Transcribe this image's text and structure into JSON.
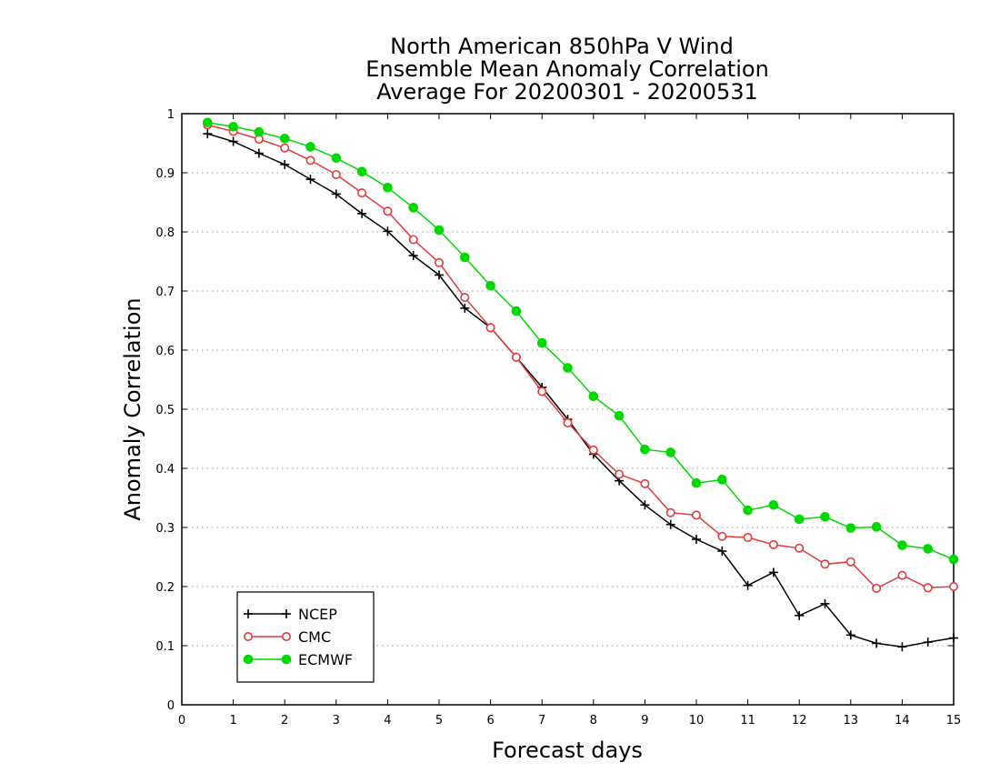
{
  "chart_data": {
    "type": "line",
    "title_lines": [
      "North American 850hPa V Wind",
      "Ensemble Mean Anomaly Correlation",
      "Average For 20200301 - 20200531"
    ],
    "xlabel": "Forecast days",
    "ylabel": "Anomaly Correlation",
    "xlim": [
      0,
      15
    ],
    "ylim": [
      0,
      1
    ],
    "xticks": [
      "0",
      "1",
      "2",
      "3",
      "4",
      "5",
      "6",
      "7",
      "8",
      "9",
      "10",
      "11",
      "12",
      "13",
      "14",
      "15"
    ],
    "yticks": [
      "0",
      "0.1",
      "0.2",
      "0.3",
      "0.4",
      "0.5",
      "0.6",
      "0.7",
      "0.8",
      "0.9",
      "1"
    ],
    "grid": "horizontal dotted",
    "legend_position": "bottom-left",
    "x": [
      0.5,
      1,
      1.5,
      2,
      2.5,
      3,
      3.5,
      4,
      4.5,
      5,
      5.5,
      6,
      6.5,
      7,
      7.5,
      8,
      8.5,
      9,
      9.5,
      10,
      10.5,
      11,
      11.5,
      12,
      12.5,
      13,
      13.5,
      14,
      14.5,
      15
    ],
    "series": [
      {
        "name": "NCEP",
        "color": "#000000",
        "marker": "plus",
        "values": [
          0.966,
          0.953,
          0.933,
          0.914,
          0.889,
          0.864,
          0.831,
          0.801,
          0.76,
          0.727,
          0.671,
          0.638,
          0.588,
          0.537,
          0.483,
          0.424,
          0.379,
          0.338,
          0.305,
          0.28,
          0.26,
          0.202,
          0.224,
          0.151,
          0.171,
          0.118,
          0.104,
          0.098,
          0.106,
          0.113
        ]
      },
      {
        "name": "CMC",
        "color": "#e03c3c",
        "marker": "open-circle",
        "values": [
          0.981,
          0.97,
          0.957,
          0.942,
          0.921,
          0.897,
          0.866,
          0.835,
          0.787,
          0.748,
          0.689,
          0.638,
          0.588,
          0.53,
          0.477,
          0.431,
          0.39,
          0.374,
          0.325,
          0.321,
          0.285,
          0.283,
          0.271,
          0.265,
          0.238,
          0.242,
          0.197,
          0.219,
          0.198,
          0.2
        ]
      },
      {
        "name": "ECMWF",
        "color": "#00d800",
        "marker": "filled-circle",
        "values": [
          0.985,
          0.978,
          0.969,
          0.958,
          0.944,
          0.925,
          0.902,
          0.875,
          0.841,
          0.803,
          0.757,
          0.709,
          0.666,
          0.612,
          0.57,
          0.522,
          0.489,
          0.432,
          0.427,
          0.375,
          0.381,
          0.329,
          0.338,
          0.314,
          0.318,
          0.299,
          0.301,
          0.27,
          0.264,
          0.246
        ]
      }
    ]
  }
}
